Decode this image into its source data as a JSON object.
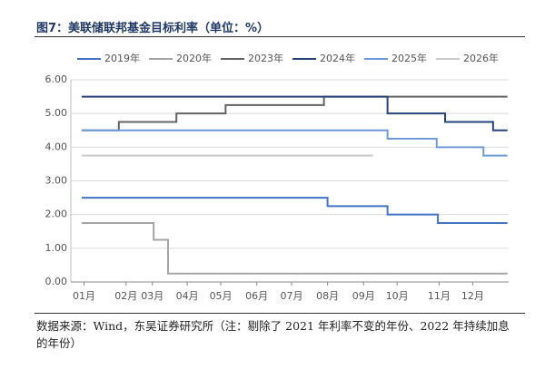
{
  "chart_data": {
    "type": "step-line",
    "title": "图7：美联储联邦基金目标利率（单位：%）",
    "source": "数据来源：Wind，东吴证券研究所（注：剔除了 2021 年利率不变的年份、2022 年持续加息的年份）",
    "xlim": [
      0,
      365
    ],
    "xticks": [
      {
        "value": 11,
        "label": "01月"
      },
      {
        "value": 46,
        "label": "02月"
      },
      {
        "value": 68,
        "label": "03月"
      },
      {
        "value": 97,
        "label": "04月"
      },
      {
        "value": 125,
        "label": "05月"
      },
      {
        "value": 155,
        "label": "06月"
      },
      {
        "value": 184,
        "label": "07月"
      },
      {
        "value": 214,
        "label": "08月"
      },
      {
        "value": 244,
        "label": "09月"
      },
      {
        "value": 272,
        "label": "10月"
      },
      {
        "value": 307,
        "label": "11月"
      },
      {
        "value": 335,
        "label": "12月"
      }
    ],
    "ylim": [
      0,
      6
    ],
    "yticks": [
      {
        "value": 0,
        "label": "0.00"
      },
      {
        "value": 1,
        "label": "1.00"
      },
      {
        "value": 2,
        "label": "2.00"
      },
      {
        "value": 3,
        "label": "3.00"
      },
      {
        "value": 4,
        "label": "4.00"
      },
      {
        "value": 5,
        "label": "5.00"
      },
      {
        "value": 6,
        "label": "6.00"
      }
    ],
    "grid": true,
    "series": [
      {
        "name": "2019年",
        "color": "#4472c4",
        "x": [
          9,
          214,
          214,
          264,
          264,
          306,
          306,
          364
        ],
        "values": [
          2.5,
          2.5,
          2.25,
          2.25,
          2.0,
          2.0,
          1.75,
          1.75
        ]
      },
      {
        "name": "2020年",
        "color": "#a5a5a5",
        "x": [
          9,
          69,
          69,
          81,
          81,
          364
        ],
        "values": [
          1.75,
          1.75,
          1.25,
          1.25,
          0.25,
          0.25
        ]
      },
      {
        "name": "2023年",
        "color": "#636363",
        "x": [
          9,
          40,
          40,
          88,
          88,
          129,
          129,
          211,
          211,
          364
        ],
        "values": [
          4.5,
          4.5,
          4.75,
          4.75,
          5.0,
          5.0,
          5.25,
          5.25,
          5.5,
          5.5
        ]
      },
      {
        "name": "2024年",
        "color": "#264478",
        "x": [
          9,
          264,
          264,
          312,
          312,
          352,
          352,
          364
        ],
        "values": [
          5.5,
          5.5,
          5.0,
          5.0,
          4.75,
          4.75,
          4.5,
          4.5
        ]
      },
      {
        "name": "2025年",
        "color": "#6f9ad8",
        "x": [
          9,
          264,
          264,
          305,
          305,
          344,
          344,
          364
        ],
        "values": [
          4.5,
          4.5,
          4.25,
          4.25,
          4.0,
          4.0,
          3.75,
          3.75
        ]
      },
      {
        "name": "2026年",
        "color": "#c9c9c9",
        "x": [
          9,
          252
        ],
        "values": [
          3.75,
          3.75
        ]
      }
    ]
  }
}
